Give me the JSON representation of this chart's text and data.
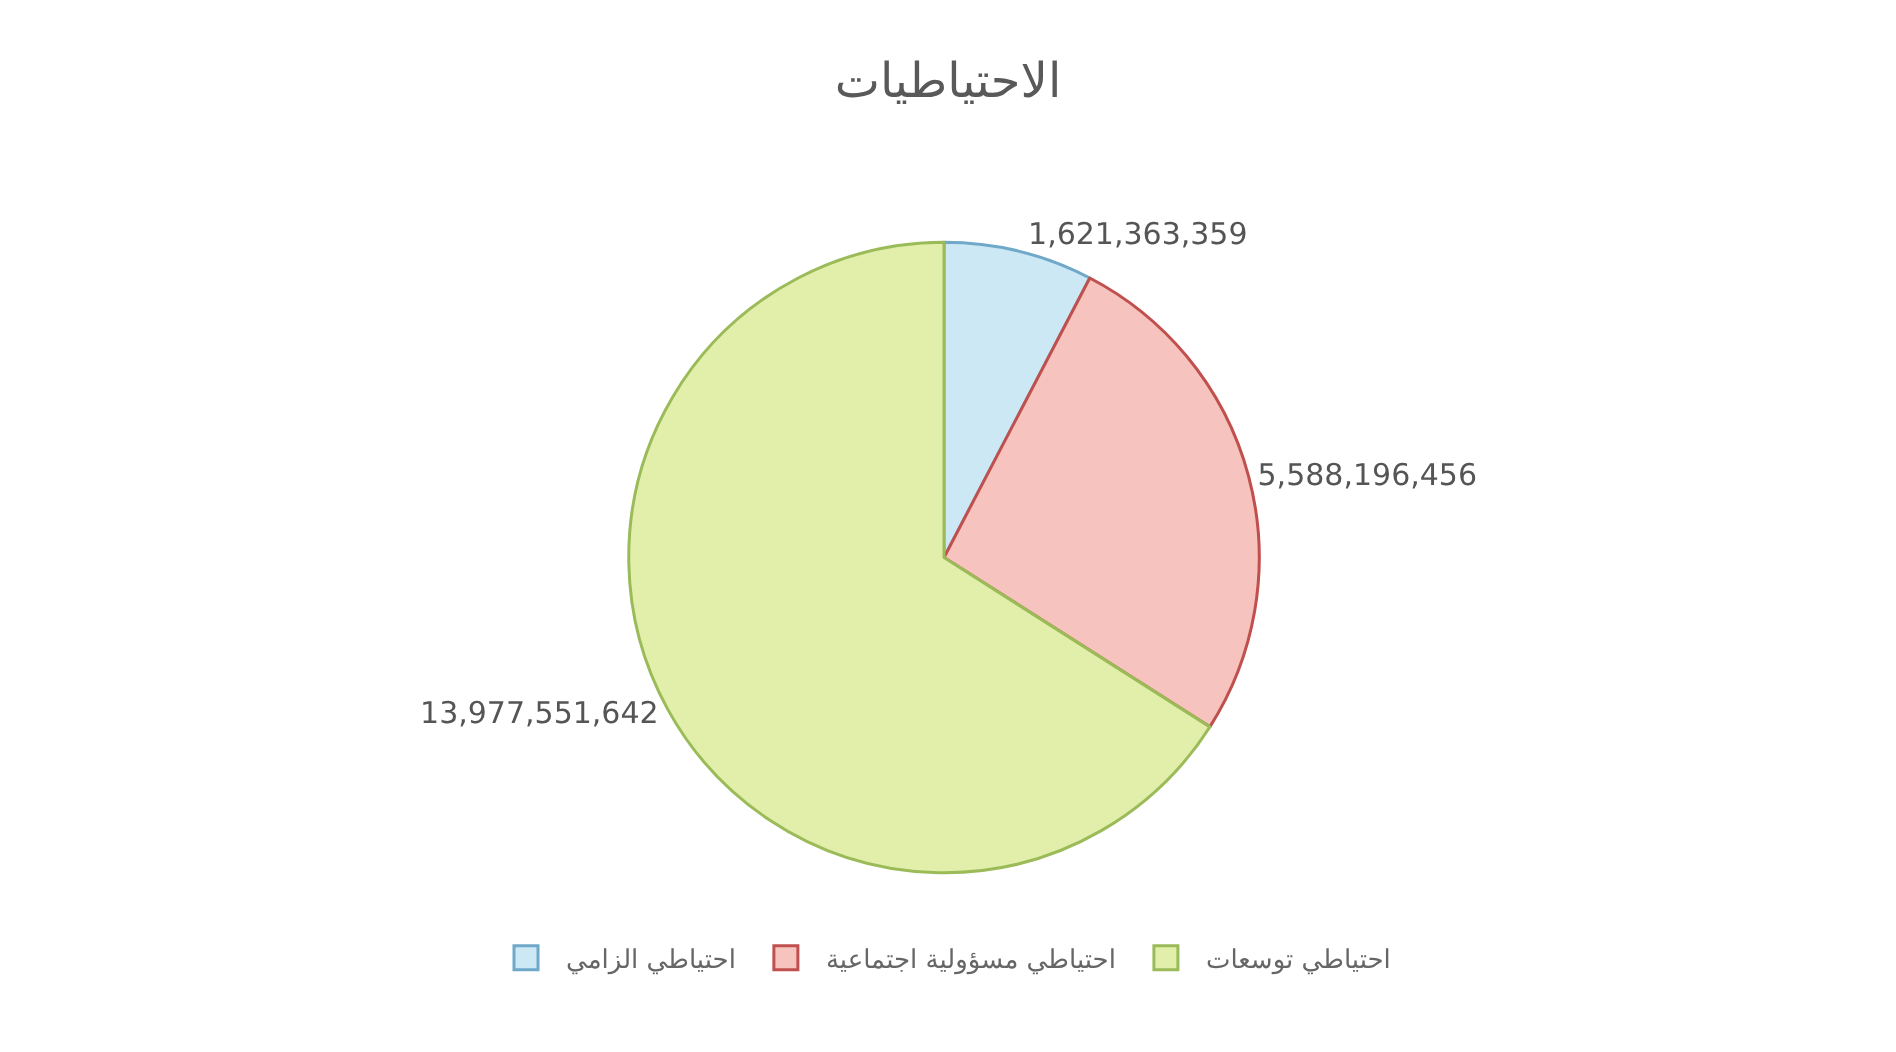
{
  "chart_data": {
    "type": "pie",
    "title": "الاحتياطيات",
    "categories": [
      "احتياطي الزامي",
      "احتياطي مسؤولية اجتماعية",
      "احتياطي توسعات"
    ],
    "values": [
      1621363359,
      5588196456,
      13977551642
    ],
    "colors": [
      "#cde8f5",
      "#f6c3be",
      "#e2efaa"
    ],
    "value_labels": [
      "1,621,363,359",
      "5,588,196,456",
      "13,977,551,642"
    ],
    "legend": "bottom"
  }
}
